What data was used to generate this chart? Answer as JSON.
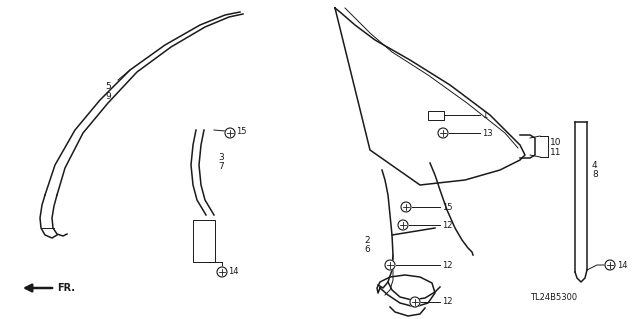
{
  "bg_color": "#ffffff",
  "line_color": "#1a1a1a",
  "diagram_id": "TL24B5300",
  "figw": 6.4,
  "figh": 3.19,
  "dpi": 100,
  "xlim": [
    0,
    640
  ],
  "ylim": [
    0,
    319
  ]
}
